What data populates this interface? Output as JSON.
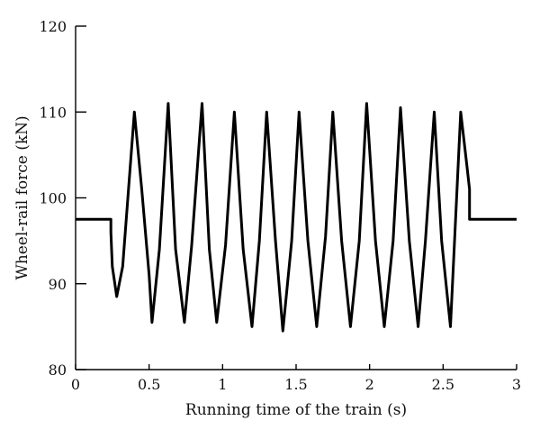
{
  "chart_data": {
    "type": "line",
    "xlabel": "Running time of the train (s)",
    "ylabel": "Wheel-rail force (kN)",
    "xlim": [
      0,
      3
    ],
    "ylim": [
      80,
      120
    ],
    "x_ticks": [
      0,
      0.5,
      1,
      1.5,
      2,
      2.5,
      3
    ],
    "x_tick_labels": [
      "0",
      "0.5",
      "1",
      "1.5",
      "2",
      "2.5",
      "3"
    ],
    "y_ticks": [
      80,
      90,
      100,
      110,
      120
    ],
    "y_tick_labels": [
      "80",
      "90",
      "100",
      "110",
      "120"
    ],
    "grid": false,
    "legend": "none",
    "line_color": "#000000",
    "series": [
      {
        "x": [
          0,
          0.24,
          0.24,
          0.25,
          0.28,
          0.32,
          0.4,
          0.45,
          0.5,
          0.52,
          0.57,
          0.63,
          0.68,
          0.74,
          0.79,
          0.86,
          0.91,
          0.96,
          1.02,
          1.08,
          1.14,
          1.2,
          1.25,
          1.3,
          1.36,
          1.41,
          1.47,
          1.52,
          1.58,
          1.64,
          1.7,
          1.75,
          1.81,
          1.87,
          1.93,
          1.98,
          2.04,
          2.1,
          2.16,
          2.21,
          2.27,
          2.33,
          2.38,
          2.44,
          2.49,
          2.55,
          2.62,
          2.66,
          2.68,
          2.68,
          2.7,
          3.0
        ],
        "y": [
          97.5,
          97.5,
          96.0,
          92.0,
          88.5,
          92.0,
          110.0,
          101.0,
          91.0,
          85.5,
          94.0,
          111.0,
          94.0,
          85.5,
          94.5,
          111.0,
          94.0,
          85.5,
          94.5,
          110.0,
          94.0,
          85.0,
          95.0,
          110.0,
          95.0,
          84.5,
          95.0,
          110.0,
          95.0,
          85.0,
          95.5,
          110.0,
          95.0,
          85.0,
          95.0,
          111.0,
          95.0,
          85.0,
          95.0,
          110.5,
          95.0,
          85.0,
          95.0,
          110.0,
          95.0,
          85.0,
          110.0,
          104.0,
          101.0,
          97.5,
          97.5,
          97.5
        ]
      }
    ]
  }
}
